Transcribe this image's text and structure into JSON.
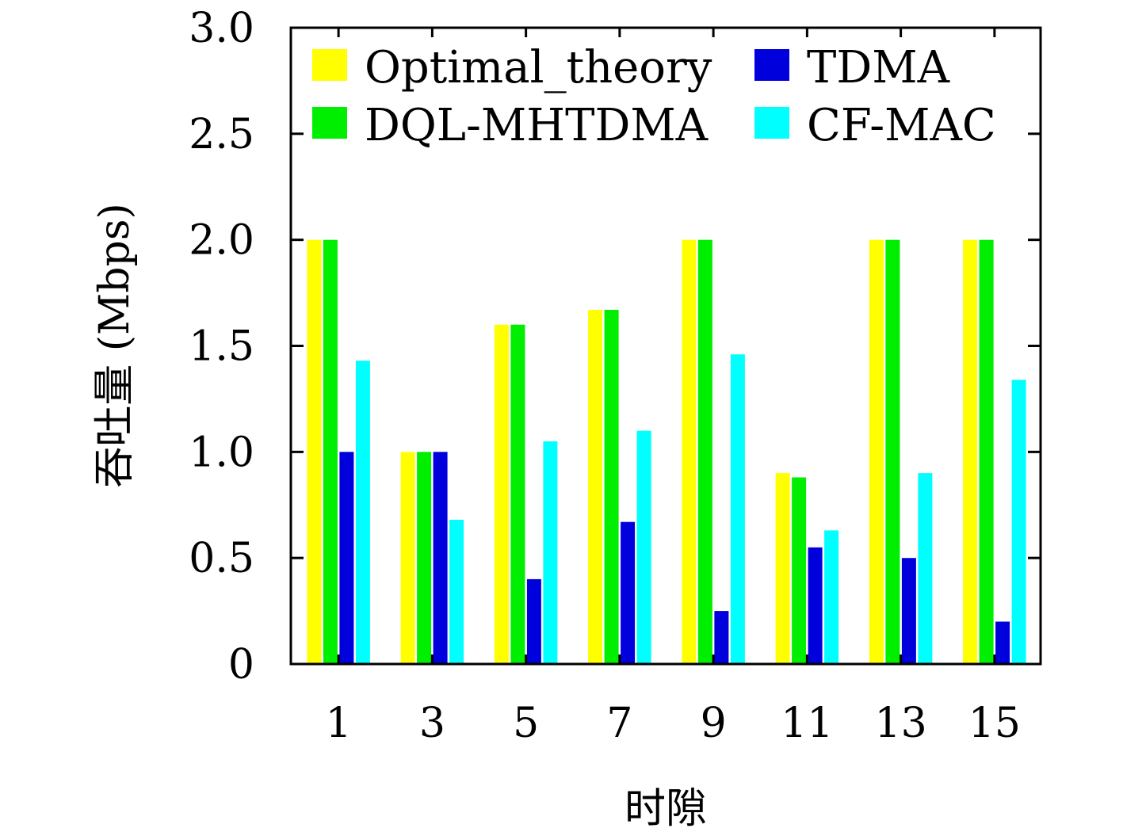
{
  "chart_data": {
    "type": "bar",
    "title": "",
    "xlabel": "时隙",
    "ylabel": "吞吐量 (Mbps)",
    "categories": [
      "1",
      "3",
      "5",
      "7",
      "9",
      "11",
      "13",
      "15"
    ],
    "ylim": [
      0,
      3.0
    ],
    "yticks": [
      "0",
      "0.5",
      "1.0",
      "1.5",
      "2.0",
      "2.5",
      "3.0"
    ],
    "grid": false,
    "legend_position": "top",
    "series": [
      {
        "name": "Optimal_theory",
        "color": "#ffff00",
        "values": [
          2.0,
          1.0,
          1.6,
          1.67,
          2.0,
          0.9,
          2.0,
          2.0
        ]
      },
      {
        "name": "DQL-MHTDMA",
        "color": "#00ee00",
        "values": [
          2.0,
          1.0,
          1.6,
          1.67,
          2.0,
          0.88,
          2.0,
          2.0
        ]
      },
      {
        "name": "TDMA",
        "color": "#0000dd",
        "values": [
          1.0,
          1.0,
          0.4,
          0.67,
          0.25,
          0.55,
          0.5,
          0.2
        ]
      },
      {
        "name": "CF-MAC",
        "color": "#00ffff",
        "values": [
          1.43,
          0.68,
          1.05,
          1.1,
          1.46,
          0.63,
          0.9,
          1.34
        ]
      }
    ]
  }
}
